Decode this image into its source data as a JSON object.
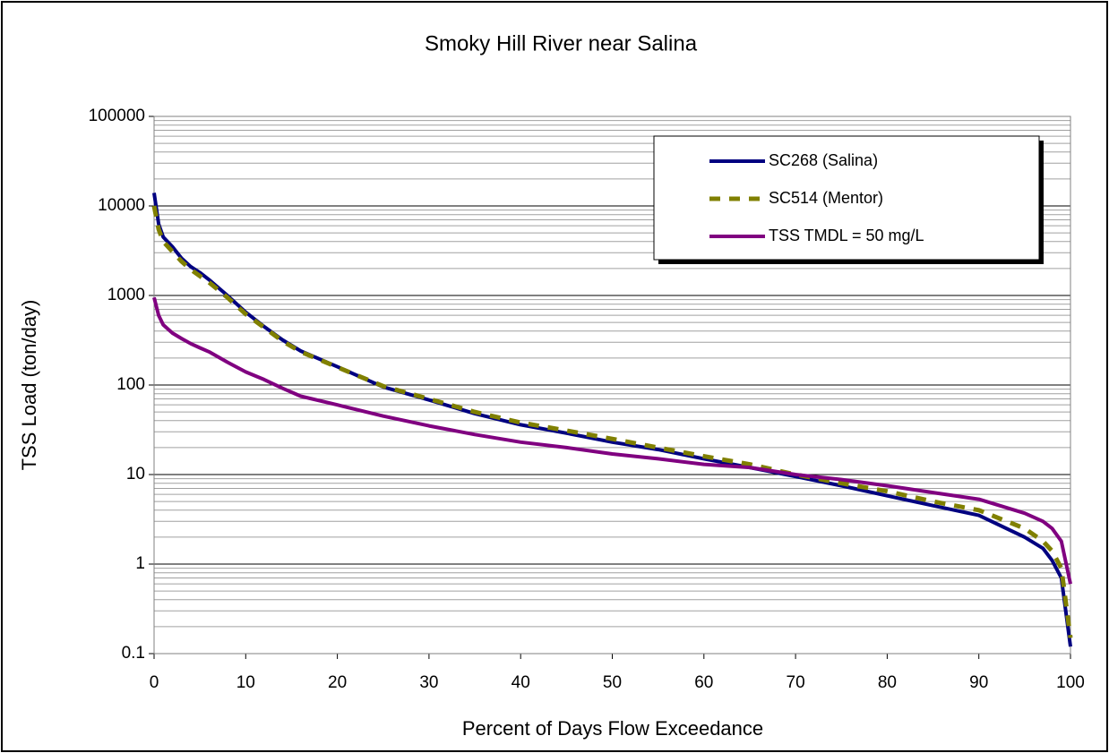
{
  "chart_data": {
    "type": "line",
    "title": "Smoky Hill River near Salina",
    "x_label": "Percent of Days Flow Exceedance",
    "y_label": "TSS Load (ton/day)",
    "x": [
      0,
      0.5,
      1,
      2,
      3,
      4,
      5,
      6,
      8,
      10,
      12,
      14,
      16,
      20,
      25,
      30,
      35,
      40,
      45,
      50,
      55,
      60,
      65,
      70,
      75,
      80,
      85,
      90,
      95,
      97,
      98,
      99,
      100
    ],
    "series": [
      {
        "name": "SC268 (Salina)",
        "color": "#000080",
        "dash": false,
        "values": [
          14000,
          6300,
          4500,
          3500,
          2600,
          2100,
          1800,
          1500,
          1000,
          650,
          450,
          320,
          240,
          160,
          95,
          68,
          48,
          36,
          29,
          23,
          19,
          15,
          12,
          9.5,
          7.5,
          5.8,
          4.5,
          3.5,
          2.0,
          1.5,
          1.1,
          0.7,
          0.12
        ]
      },
      {
        "name": "SC514 (Mentor)",
        "color": "#808000",
        "dash": true,
        "values": [
          10000,
          5500,
          4000,
          3100,
          2400,
          1950,
          1650,
          1400,
          950,
          620,
          440,
          310,
          235,
          158,
          97,
          70,
          50,
          38,
          31,
          25,
          20,
          16,
          13,
          10,
          8.0,
          6.5,
          5.0,
          4.0,
          2.5,
          1.8,
          1.4,
          0.9,
          0.15
        ]
      },
      {
        "name": "TSS TMDL = 50 mg/L",
        "color": "#800080",
        "dash": false,
        "values": [
          950,
          600,
          470,
          380,
          330,
          290,
          260,
          235,
          180,
          140,
          115,
          92,
          75,
          60,
          45,
          35,
          28,
          23,
          20,
          17,
          15,
          13,
          12,
          10,
          8.8,
          7.5,
          6.3,
          5.3,
          3.7,
          3.0,
          2.5,
          1.8,
          0.6
        ]
      }
    ],
    "xlim": [
      0,
      100
    ],
    "xticks": [
      0,
      10,
      20,
      30,
      40,
      50,
      60,
      70,
      80,
      90,
      100
    ],
    "ylim": [
      0.1,
      100000
    ],
    "yticks": [
      0.1,
      1,
      10,
      100,
      1000,
      10000,
      100000
    ],
    "log_y": true,
    "grid": true,
    "minor_grid": true,
    "legend": "upper right"
  }
}
